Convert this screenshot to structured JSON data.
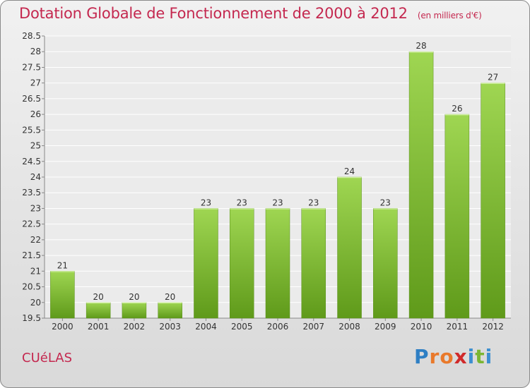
{
  "title": "Dotation Globale de Fonctionnement de 2000 à 2012",
  "subtitle": "(en milliers d'€)",
  "commune": "CUéLAS",
  "logo": {
    "letters": [
      "P",
      "r",
      "o",
      "x",
      "i",
      "t",
      "i"
    ],
    "colors": [
      "#2e7fc4",
      "#e9792b",
      "#e9792b",
      "#d02a2a",
      "#3d8fd0",
      "#7bb632",
      "#3d8fd0"
    ]
  },
  "colors": {
    "title": "#c4284f",
    "bar_top": "#9fd652",
    "bar_bottom": "#5f9a1a"
  },
  "chart_data": {
    "type": "bar",
    "categories": [
      "2000",
      "2001",
      "2002",
      "2003",
      "2004",
      "2005",
      "2006",
      "2007",
      "2008",
      "2009",
      "2010",
      "2011",
      "2012"
    ],
    "values": [
      21,
      20,
      20,
      20,
      23,
      23,
      23,
      23,
      24,
      23,
      28,
      26,
      27
    ],
    "data_labels": [
      "21",
      "20",
      "20",
      "20",
      "23",
      "23",
      "23",
      "23",
      "24",
      "23",
      "28",
      "26",
      "27"
    ],
    "ylim": [
      19.5,
      28.5
    ],
    "yticks": [
      19.5,
      20,
      20.5,
      21,
      21.5,
      22,
      22.5,
      23,
      23.5,
      24,
      24.5,
      25,
      25.5,
      26,
      26.5,
      27,
      27.5,
      28,
      28.5
    ],
    "ytick_labels": [
      "19.5",
      "20",
      "20.5",
      "21",
      "21.5",
      "22",
      "22.5",
      "23",
      "23.5",
      "24",
      "24.5",
      "25",
      "25.5",
      "26",
      "26.5",
      "27",
      "27.5",
      "28",
      "28.5"
    ],
    "grid": true,
    "xlabel": "",
    "ylabel": ""
  }
}
